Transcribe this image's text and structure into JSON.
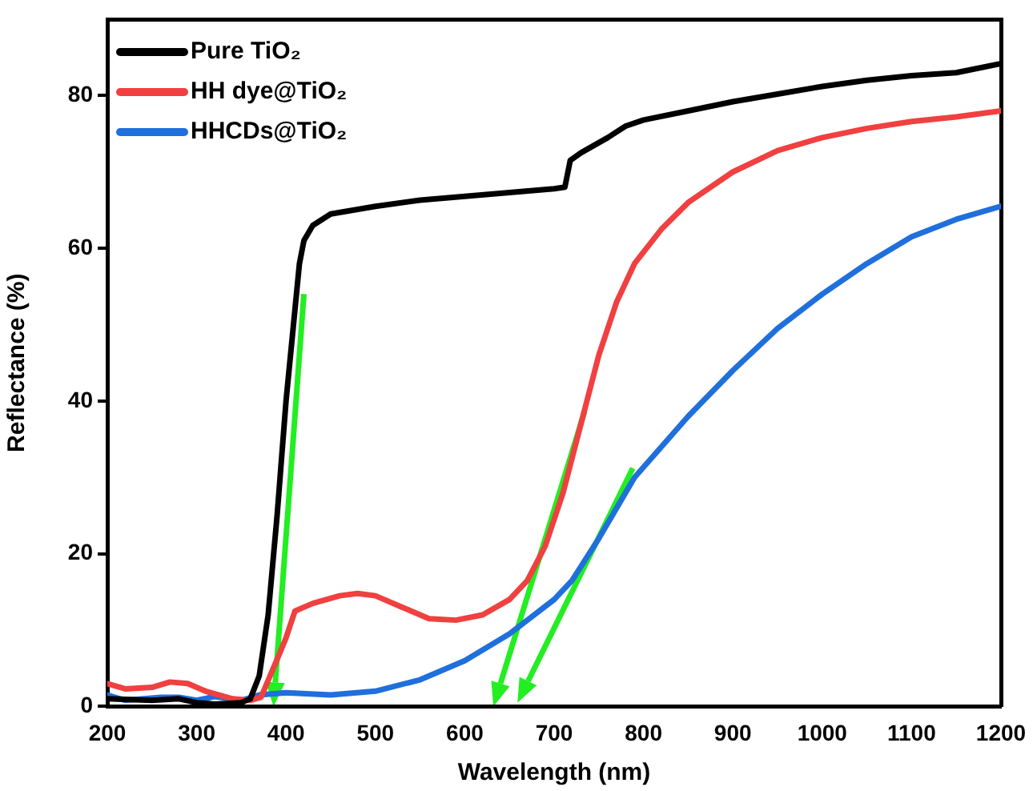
{
  "chart_data": {
    "type": "line",
    "xlabel": "Wavelength (nm)",
    "ylabel": "Reflectance (%)",
    "xlim": [
      200,
      1200
    ],
    "xticks": [
      200,
      300,
      400,
      500,
      600,
      700,
      800,
      900,
      1000,
      1100,
      1200
    ],
    "ylim": [
      0,
      90
    ],
    "yticks": [
      0,
      20,
      40,
      60,
      80
    ],
    "grid": false,
    "legend": "top left",
    "marker": "none",
    "line_style": "solid",
    "series": [
      {
        "name": "Pure TiO₂",
        "color": "#000000",
        "x": [
          200,
          250,
          280,
          300,
          320,
          350,
          360,
          370,
          380,
          390,
          400,
          410,
          415,
          420,
          430,
          450,
          500,
          550,
          600,
          650,
          700,
          712,
          718,
          730,
          760,
          780,
          800,
          850,
          900,
          950,
          1000,
          1050,
          1100,
          1150,
          1200
        ],
        "values": [
          1,
          0.8,
          1,
          0.5,
          0.3,
          0.5,
          1,
          4,
          12,
          25,
          40,
          52,
          58,
          61,
          63,
          64.5,
          65.5,
          66.3,
          66.8,
          67.3,
          67.8,
          68,
          71.5,
          72.5,
          74.5,
          76,
          76.8,
          78,
          79.2,
          80.2,
          81.2,
          82,
          82.6,
          83,
          84.2
        ]
      },
      {
        "name": "HH dye@TiO₂",
        "color": "#f04040",
        "x": [
          200,
          220,
          250,
          270,
          290,
          310,
          340,
          360,
          372,
          393,
          400,
          410,
          430,
          460,
          480,
          500,
          530,
          560,
          590,
          620,
          650,
          670,
          690,
          710,
          730,
          750,
          770,
          790,
          820,
          850,
          900,
          950,
          1000,
          1050,
          1100,
          1150,
          1200
        ],
        "values": [
          3,
          2.3,
          2.5,
          3.2,
          3,
          2,
          1,
          0.8,
          1.2,
          7,
          9,
          12.5,
          13.5,
          14.5,
          14.8,
          14.5,
          13,
          11.5,
          11.3,
          12,
          14,
          16.5,
          21,
          28,
          37,
          46,
          53,
          58,
          62.5,
          66,
          70,
          72.8,
          74.5,
          75.7,
          76.6,
          77.2,
          78
        ]
      },
      {
        "name": "HHCDs@TiO₂",
        "color": "#1f6fdc",
        "x": [
          200,
          220,
          260,
          280,
          300,
          320,
          350,
          370,
          400,
          450,
          500,
          550,
          600,
          650,
          700,
          720,
          750,
          790,
          850,
          900,
          950,
          1000,
          1050,
          1100,
          1150,
          1200
        ],
        "values": [
          1.5,
          0.8,
          1.2,
          1.2,
          0.8,
          1.3,
          0.8,
          1.5,
          1.8,
          1.5,
          2,
          3.5,
          6,
          9.5,
          14,
          16.5,
          22,
          30,
          38,
          44,
          49.5,
          54,
          58,
          61.5,
          63.8,
          65.5
        ]
      }
    ]
  }
}
